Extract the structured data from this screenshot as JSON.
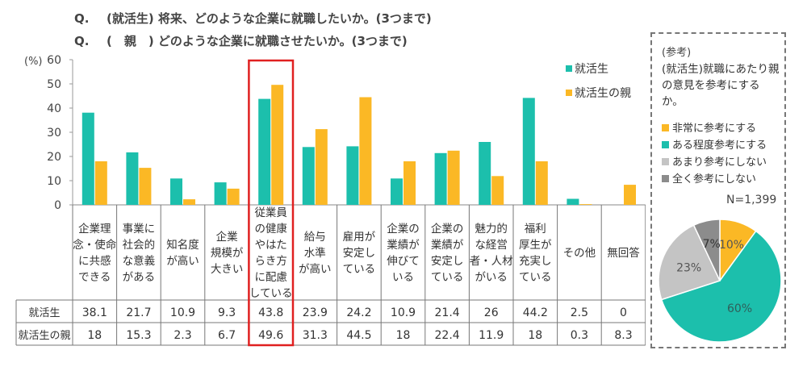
{
  "header": {
    "q1_label": "Q.",
    "q1_text": "(就活生) 将来、どのような企業に就職したいか。(3つまで)",
    "q2_label": "Q.",
    "q2_text": "(　親　) どのような企業に就職させたいか。(3つまで)"
  },
  "colors": {
    "student": "#1cbfac",
    "parent": "#fbb825",
    "highlight": "#e02020"
  },
  "chart_data": [
    {
      "type": "bar",
      "unit_label": "(%)",
      "ylim": [
        0,
        60
      ],
      "yticks": [
        0,
        10,
        20,
        30,
        40,
        50,
        60
      ],
      "grid": false,
      "legend_placement": "top-right",
      "categories": [
        [
          "企業理",
          "念・使命",
          "に共感",
          "できる"
        ],
        [
          "事業に",
          "社会的",
          "な意義",
          "がある"
        ],
        [
          "知名度",
          "が高い"
        ],
        [
          "企業",
          "規模が",
          "大きい"
        ],
        [
          "従業員",
          "の健康",
          "やはた",
          "らき方",
          "に配慮",
          "している"
        ],
        [
          "給与",
          "水準",
          "が高い"
        ],
        [
          "雇用が",
          "安定し",
          "ている"
        ],
        [
          "企業の",
          "業績が",
          "伸びて",
          "いる"
        ],
        [
          "企業の",
          "業績が",
          "安定し",
          "ている"
        ],
        [
          "魅力的",
          "な経営",
          "者・人材",
          "がいる"
        ],
        [
          "福利",
          "厚生が",
          "充実し",
          "ている"
        ],
        [
          "その他"
        ],
        [
          "無回答"
        ]
      ],
      "series": [
        {
          "name": "就活生",
          "values": [
            38.1,
            21.7,
            10.9,
            9.3,
            43.8,
            23.9,
            24.2,
            10.9,
            21.4,
            26,
            44.2,
            2.5,
            0
          ]
        },
        {
          "name": "就活生の親",
          "values": [
            18,
            15.3,
            2.3,
            6.7,
            49.6,
            31.3,
            44.5,
            18,
            22.4,
            11.9,
            18,
            0.3,
            8.3
          ]
        }
      ],
      "table_values": {
        "student": [
          "38.1",
          "21.7",
          "10.9",
          "9.3",
          "43.8",
          "23.9",
          "24.2",
          "10.9",
          "21.4",
          "26",
          "44.2",
          "2.5",
          "0"
        ],
        "parent": [
          "18",
          "15.3",
          "2.3",
          "6.7",
          "49.6",
          "31.3",
          "44.5",
          "18",
          "22.4",
          "11.9",
          "18",
          "0.3",
          "8.3"
        ]
      },
      "highlighted_category_index": 4
    },
    {
      "type": "pie",
      "title": "(参考)",
      "question": "(就活生)就職にあたり親の意見を参考にするか。",
      "n_label": "N=1,399",
      "slices": [
        {
          "name": "非常に参考にする",
          "value": 10,
          "label": "10%",
          "color": "#fbb825"
        },
        {
          "name": "ある程度参考にする",
          "value": 60,
          "label": "60%",
          "color": "#1cbfac"
        },
        {
          "name": "あまり参考にしない",
          "value": 23,
          "label": "23%",
          "color": "#c4c4c4"
        },
        {
          "name": "全く参考にしない",
          "value": 7,
          "label": "7%",
          "color": "#8c8c8c"
        }
      ]
    }
  ]
}
